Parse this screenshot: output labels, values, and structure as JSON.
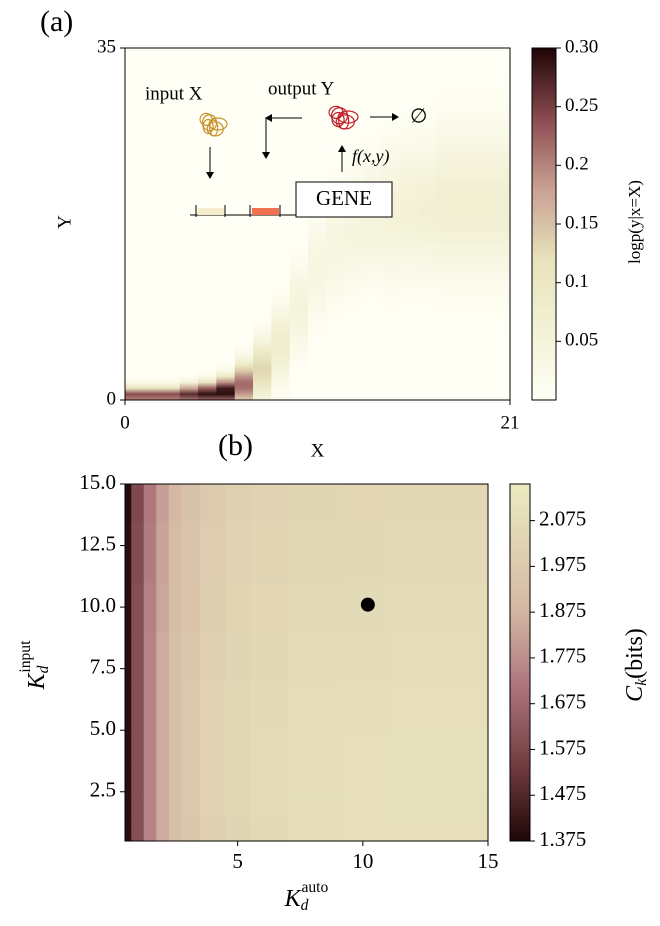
{
  "chart_data": [
    {
      "type": "heatmap",
      "label": "(a)",
      "x_label": "X",
      "y_label": "Y",
      "xlim": [
        0,
        21
      ],
      "xticks": [
        0,
        21
      ],
      "ylim": [
        0,
        35
      ],
      "yticks": [
        0,
        35
      ],
      "colorbar": {
        "label": "logp(y|x=X)",
        "clim": [
          0,
          0.3
        ],
        "ticks": [
          0.05,
          0.1,
          0.15,
          0.2,
          0.25,
          {
            "value": 0.3,
            "label": "0.30"
          }
        ]
      },
      "ridge": {
        "x": [
          0.5,
          1.5,
          2.5,
          3.5,
          4.5,
          5.5,
          6.5,
          7.5,
          8.5,
          9.5,
          10.5,
          11.5,
          12.5,
          13.5,
          14.5,
          15.5,
          16.5,
          17.5,
          18.5,
          19.5,
          20.5
        ],
        "y_center": [
          0.4,
          0.4,
          0.4,
          0.5,
          0.6,
          0.8,
          1.5,
          3,
          5.5,
          9,
          13,
          15.5,
          17,
          18,
          18.5,
          19,
          19,
          19.5,
          19.5,
          19.5,
          19.5
        ],
        "width": [
          0.6,
          0.6,
          0.6,
          0.7,
          0.8,
          1,
          1.5,
          2,
          2.5,
          3,
          3.5,
          4,
          4,
          4,
          4.5,
          4.5,
          4.5,
          5,
          5,
          5,
          5
        ],
        "peak": [
          0.25,
          0.25,
          0.25,
          0.27,
          0.29,
          0.3,
          0.22,
          0.13,
          0.08,
          0.05,
          0.04,
          0.04,
          0.045,
          0.05,
          0.055,
          0.06,
          0.065,
          0.07,
          0.07,
          0.07,
          0.07
        ]
      },
      "inset": {
        "input": "input X",
        "output": "output Y",
        "rate": "f(x,y)",
        "gene": "GENE",
        "sink": "∅"
      }
    },
    {
      "type": "contour",
      "label": "(b)",
      "x_label": {
        "symbol": "K",
        "subscript": "d",
        "superscript": "auto"
      },
      "y_label": {
        "symbol": "K",
        "subscript": "d",
        "superscript": "input"
      },
      "xlim": [
        0.5,
        15
      ],
      "xticks": [
        5,
        10,
        15
      ],
      "ylim": [
        0.5,
        15
      ],
      "yticks": [
        2.5,
        {
          "value": 5,
          "label": "5.0"
        },
        7.5,
        {
          "value": 10,
          "label": "10.0"
        },
        12.5,
        {
          "value": 15,
          "label": "15.0"
        }
      ],
      "colorbar": {
        "label": {
          "symbol": "C",
          "subscript": "k",
          "text": "(bits)"
        },
        "clim": [
          1.375,
          2.155
        ],
        "ticks": [
          1.375,
          1.475,
          1.575,
          1.675,
          1.775,
          1.875,
          1.975,
          2.075
        ]
      },
      "x": [
        0.5,
        1,
        1.5,
        2,
        2.5,
        3,
        4,
        5,
        6,
        8,
        10,
        12,
        15
      ],
      "y": [
        0.5,
        1,
        2,
        3,
        4,
        6,
        8,
        10,
        12,
        15
      ],
      "z": [
        [
          1.4,
          1.6,
          1.75,
          1.85,
          1.92,
          1.96,
          2.01,
          2.04,
          2.06,
          2.08,
          2.09,
          2.09,
          2.09
        ],
        [
          1.4,
          1.6,
          1.75,
          1.85,
          1.92,
          1.96,
          2.01,
          2.04,
          2.06,
          2.08,
          2.09,
          2.09,
          2.09
        ],
        [
          1.4,
          1.6,
          1.75,
          1.85,
          1.92,
          1.97,
          2.02,
          2.05,
          2.07,
          2.085,
          2.09,
          2.095,
          2.095
        ],
        [
          1.4,
          1.6,
          1.75,
          1.85,
          1.92,
          1.97,
          2.02,
          2.05,
          2.07,
          2.085,
          2.09,
          2.095,
          2.1
        ],
        [
          1.4,
          1.6,
          1.75,
          1.85,
          1.92,
          1.97,
          2.02,
          2.05,
          2.07,
          2.085,
          2.09,
          2.095,
          2.1
        ],
        [
          1.4,
          1.6,
          1.75,
          1.85,
          1.92,
          1.97,
          2.02,
          2.05,
          2.065,
          2.08,
          2.085,
          2.09,
          2.09
        ],
        [
          1.4,
          1.6,
          1.75,
          1.85,
          1.92,
          1.96,
          2.01,
          2.04,
          2.055,
          2.07,
          2.075,
          2.08,
          2.08
        ],
        [
          1.4,
          1.6,
          1.74,
          1.84,
          1.91,
          1.95,
          2.0,
          2.03,
          2.045,
          2.06,
          2.065,
          2.07,
          2.07
        ],
        [
          1.4,
          1.59,
          1.73,
          1.83,
          1.9,
          1.94,
          1.99,
          2.02,
          2.035,
          2.05,
          2.055,
          2.06,
          2.06
        ],
        [
          1.39,
          1.58,
          1.72,
          1.82,
          1.89,
          1.93,
          1.98,
          2.01,
          2.025,
          2.04,
          2.045,
          2.05,
          2.05
        ]
      ],
      "marker": {
        "x": 10.2,
        "y": 10.1
      }
    }
  ]
}
